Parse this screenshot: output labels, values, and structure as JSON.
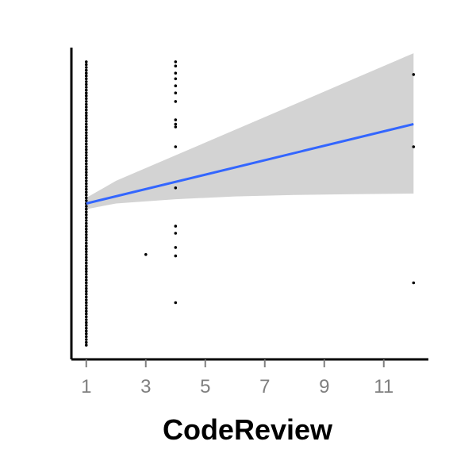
{
  "chart_data": {
    "type": "scatter",
    "title": "",
    "xlabel": "CodeReview",
    "ylabel": "",
    "xlim": [
      0.5,
      12.5
    ],
    "ylim": [
      -0.05,
      1.05
    ],
    "x_ticks": [
      1,
      3,
      5,
      7,
      9,
      11
    ],
    "x_tick_labels": [
      "1",
      "3",
      "5",
      "7",
      "9",
      "11"
    ],
    "y_ticks": [],
    "grid": false,
    "legend": "none",
    "colors": {
      "points": "#000000",
      "fit_line": "#3366FF",
      "confidence_band": "#D3D3D3",
      "axis": "#000000",
      "tick_label": "#7F7F7F"
    },
    "points": {
      "x": [
        3,
        4,
        4,
        4,
        4,
        4,
        4,
        4,
        4,
        4,
        4,
        4,
        4,
        4,
        4,
        4,
        4,
        4,
        12,
        12,
        12
      ],
      "y": [
        0.32,
        1.0,
        0.985,
        0.96,
        0.94,
        0.915,
        0.89,
        0.86,
        0.795,
        0.78,
        0.77,
        0.7,
        0.555,
        0.42,
        0.395,
        0.345,
        0.315,
        0.15,
        0.955,
        0.7,
        0.22
      ]
    },
    "dense_column": {
      "x": 1,
      "y_min": 0.0,
      "y_max": 1.0
    },
    "fit_line": {
      "x": [
        1,
        12
      ],
      "y": [
        0.5,
        0.78
      ]
    },
    "confidence_band": {
      "x": [
        1,
        2,
        4,
        6,
        8,
        10,
        12
      ],
      "upper": [
        0.52,
        0.58,
        0.67,
        0.76,
        0.85,
        0.94,
        1.03
      ],
      "lower": [
        0.48,
        0.5,
        0.515,
        0.525,
        0.53,
        0.533,
        0.535
      ]
    }
  }
}
